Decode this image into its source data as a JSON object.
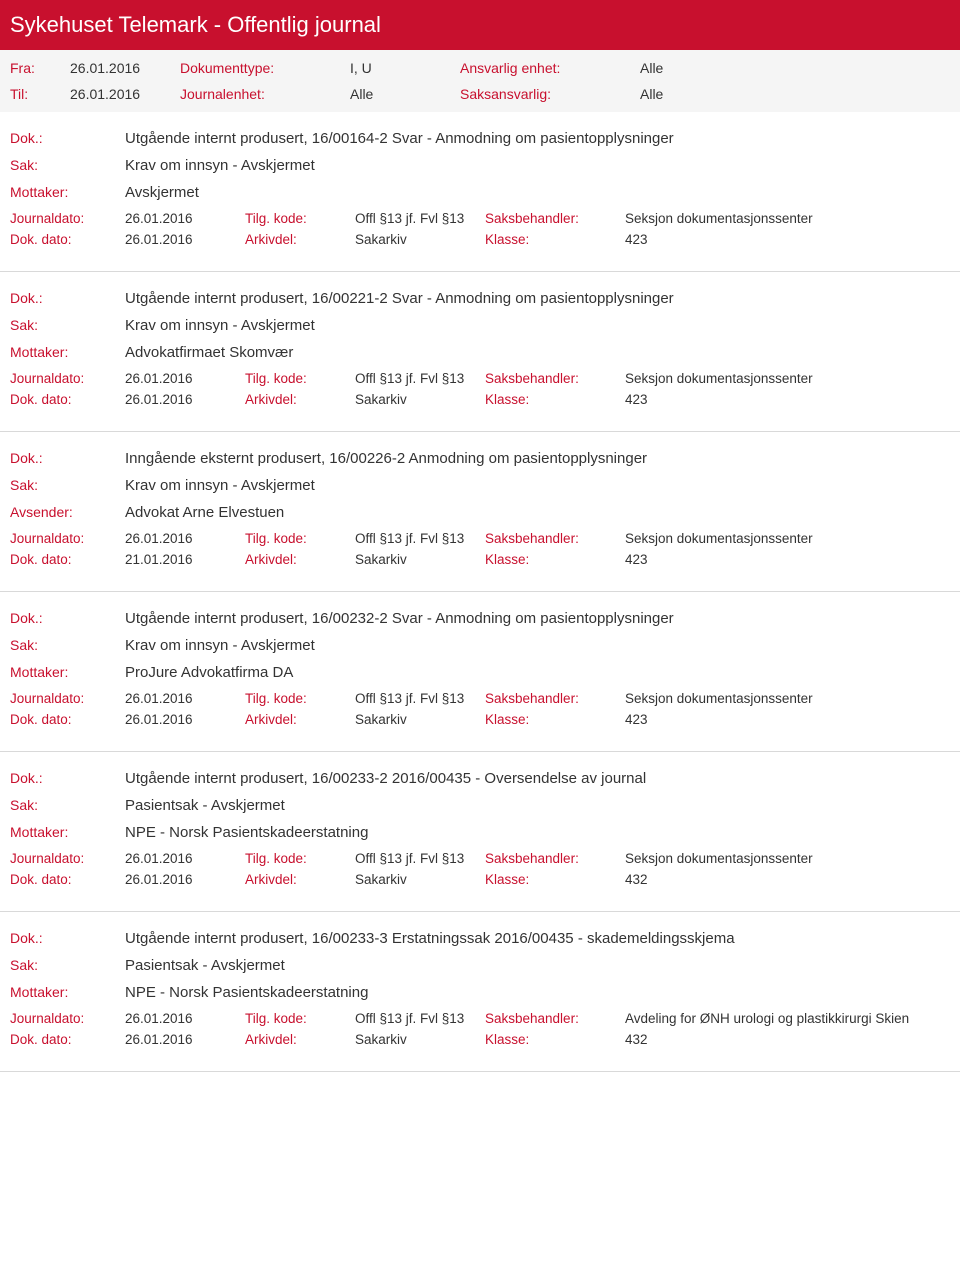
{
  "header": {
    "title": "Sykehuset Telemark - Offentlig journal"
  },
  "meta": {
    "fra_label": "Fra:",
    "fra_value": "26.01.2016",
    "til_label": "Til:",
    "til_value": "26.01.2016",
    "dokumenttype_label": "Dokumenttype:",
    "dokumenttype_value": "I, U",
    "journalenhet_label": "Journalenhet:",
    "journalenhet_value": "Alle",
    "ansvarlig_label": "Ansvarlig enhet:",
    "ansvarlig_value": "Alle",
    "saksansvarlig_label": "Saksansvarlig:",
    "saksansvarlig_value": "Alle"
  },
  "labels": {
    "dok": "Dok.:",
    "sak": "Sak:",
    "mottaker": "Mottaker:",
    "avsender": "Avsender:",
    "journaldato": "Journaldato:",
    "dok_dato": "Dok. dato:",
    "tilg_kode": "Tilg. kode:",
    "arkivdel": "Arkivdel:",
    "saksbehandler": "Saksbehandler:",
    "klasse": "Klasse:"
  },
  "entries": [
    {
      "dok": "Utgående internt produsert, 16/00164-2 Svar - Anmodning om pasientopplysninger",
      "sak": "Krav om innsyn - Avskjermet",
      "party_label": "Mottaker:",
      "party": "Avskjermet",
      "journaldato": "26.01.2016",
      "tilg_kode": "Offl §13 jf. Fvl §13",
      "saksbehandler": "Seksjon dokumentasjonssenter",
      "dok_dato": "26.01.2016",
      "arkivdel": "Sakarkiv",
      "klasse": "423"
    },
    {
      "dok": "Utgående internt produsert, 16/00221-2 Svar - Anmodning om pasientopplysninger",
      "sak": "Krav om innsyn - Avskjermet",
      "party_label": "Mottaker:",
      "party": "Advokatfirmaet Skomvær",
      "journaldato": "26.01.2016",
      "tilg_kode": "Offl §13 jf. Fvl §13",
      "saksbehandler": "Seksjon dokumentasjonssenter",
      "dok_dato": "26.01.2016",
      "arkivdel": "Sakarkiv",
      "klasse": "423"
    },
    {
      "dok": "Inngående eksternt produsert, 16/00226-2 Anmodning om pasientopplysninger",
      "sak": "Krav om innsyn - Avskjermet",
      "party_label": "Avsender:",
      "party": "Advokat Arne Elvestuen",
      "journaldato": "26.01.2016",
      "tilg_kode": "Offl §13 jf. Fvl §13",
      "saksbehandler": "Seksjon dokumentasjonssenter",
      "dok_dato": "21.01.2016",
      "arkivdel": "Sakarkiv",
      "klasse": "423"
    },
    {
      "dok": "Utgående internt produsert, 16/00232-2 Svar - Anmodning om pasientopplysninger",
      "sak": "Krav om innsyn - Avskjermet",
      "party_label": "Mottaker:",
      "party": "ProJure Advokatfirma DA",
      "journaldato": "26.01.2016",
      "tilg_kode": "Offl §13 jf. Fvl §13",
      "saksbehandler": "Seksjon dokumentasjonssenter",
      "dok_dato": "26.01.2016",
      "arkivdel": "Sakarkiv",
      "klasse": "423"
    },
    {
      "dok": "Utgående internt produsert, 16/00233-2 2016/00435 - Oversendelse av journal",
      "sak": "Pasientsak - Avskjermet",
      "party_label": "Mottaker:",
      "party": "NPE - Norsk Pasientskadeerstatning",
      "journaldato": "26.01.2016",
      "tilg_kode": "Offl §13 jf. Fvl §13",
      "saksbehandler": "Seksjon dokumentasjonssenter",
      "dok_dato": "26.01.2016",
      "arkivdel": "Sakarkiv",
      "klasse": "432"
    },
    {
      "dok": "Utgående internt produsert, 16/00233-3 Erstatningssak 2016/00435 - skademeldingsskjema",
      "sak": "Pasientsak - Avskjermet",
      "party_label": "Mottaker:",
      "party": "NPE - Norsk Pasientskadeerstatning",
      "journaldato": "26.01.2016",
      "tilg_kode": "Offl §13 jf. Fvl §13",
      "saksbehandler": "Avdeling for ØNH urologi og plastikkirurgi Skien",
      "dok_dato": "26.01.2016",
      "arkivdel": "Sakarkiv",
      "klasse": "432"
    }
  ]
}
